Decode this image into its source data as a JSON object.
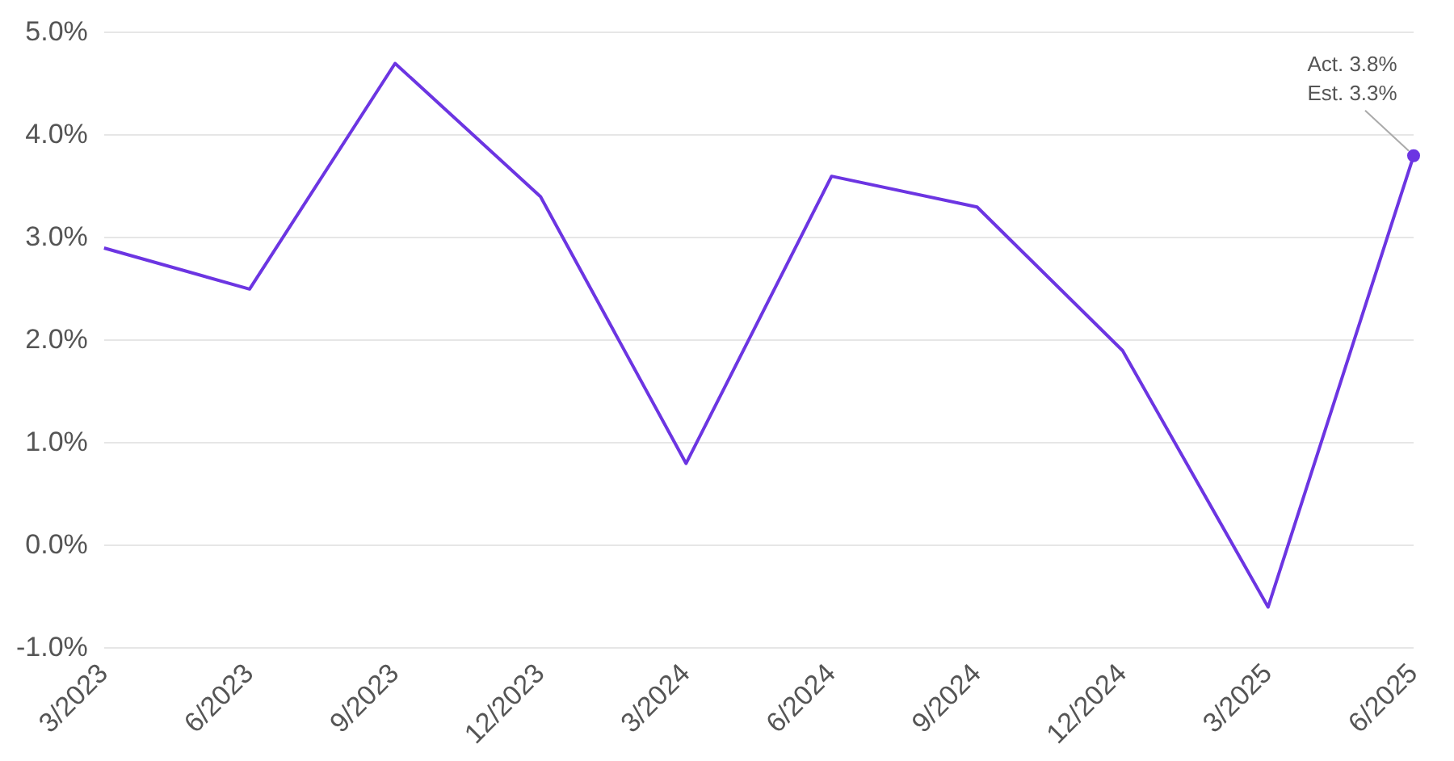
{
  "chart_data": {
    "type": "line",
    "categories": [
      "3/2023",
      "6/2023",
      "9/2023",
      "12/2023",
      "3/2024",
      "6/2024",
      "9/2024",
      "12/2024",
      "3/2025",
      "6/2025"
    ],
    "series": [
      {
        "color": "#6c35e2",
        "values": [
          2.9,
          2.5,
          4.7,
          3.4,
          0.8,
          3.6,
          3.3,
          1.9,
          -0.6,
          3.8
        ]
      }
    ],
    "ylim": [
      -1,
      5
    ],
    "yticks": [
      {
        "value": -1,
        "label": "-1.0%"
      },
      {
        "value": 0,
        "label": "0.0%"
      },
      {
        "value": 1,
        "label": "1.0%"
      },
      {
        "value": 2,
        "label": "2.0%"
      },
      {
        "value": 3,
        "label": "3.0%"
      },
      {
        "value": 4,
        "label": "4.0%"
      },
      {
        "value": 5,
        "label": "5.0%"
      }
    ],
    "grid": "y",
    "legend": false,
    "marker": "none",
    "line_style": "solid",
    "annotations": [
      {
        "text": "Act. 3.8%\nEst. 3.3%",
        "x": "6/2025",
        "y": 3.8
      }
    ]
  }
}
